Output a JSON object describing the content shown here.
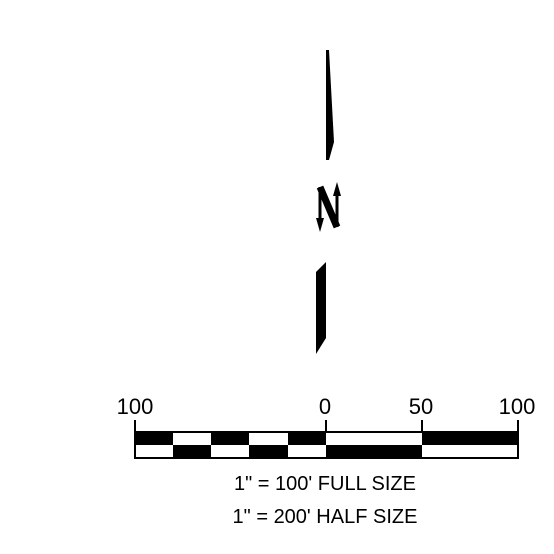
{
  "north_arrow": {
    "letter": "N"
  },
  "scale_bar": {
    "tick_labels": [
      "100",
      "0",
      "50",
      "100"
    ],
    "notes": [
      "1\" = 100' FULL SIZE",
      "1\" = 200' HALF SIZE"
    ]
  }
}
